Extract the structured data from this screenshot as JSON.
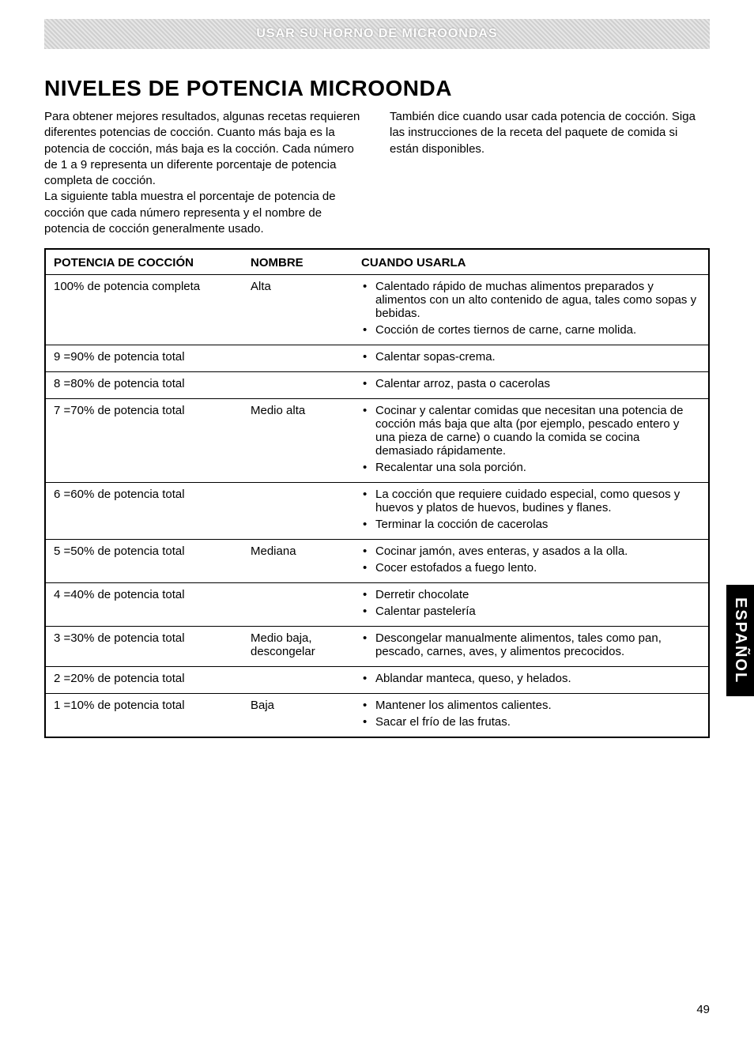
{
  "banner_text": "USAR SU HORNO DE MICROONDAS",
  "title": "NIVELES DE POTENCIA MICROONDA",
  "intro_left_1": "Para obtener mejores resultados, algunas recetas requieren diferentes potencias de cocción. Cuanto más baja es la potencia de cocción, más baja es la cocción. Cada número de 1 a 9 representa un diferente porcentaje de potencia completa de cocción.",
  "intro_left_2": "La siguiente tabla muestra el porcentaje de potencia de cocción que cada número representa y el nombre de potencia de cocción generalmente usado.",
  "intro_right": "También dice cuando usar cada potencia de cocción. Siga las instrucciones de la receta del paquete de comida si están disponibles.",
  "headers": {
    "col1": "POTENCIA DE COCCIÓN",
    "col2": "NOMBRE",
    "col3": "CUANDO USARLA"
  },
  "rows": [
    {
      "power": "100% de potencia completa",
      "name": "Alta",
      "uses": [
        "Calentado rápido de muchas alimentos preparados y alimentos con un alto contenido de agua, tales como sopas y bebidas.",
        "Cocción de cortes tiernos de carne, carne molida."
      ]
    },
    {
      "power": "9 =90% de potencia total",
      "name": "",
      "uses": [
        "Calentar sopas-crema."
      ]
    },
    {
      "power": "8 =80% de potencia total",
      "name": "",
      "uses": [
        "Calentar arroz, pasta o cacerolas"
      ]
    },
    {
      "power": "7 =70% de potencia total",
      "name": "Medio alta",
      "uses": [
        "Cocinar y calentar comidas que necesitan una potencia de cocción más baja que alta (por ejemplo, pescado entero y una pieza de carne) o cuando la comida se cocina demasiado rápidamente.",
        "Recalentar una sola porción."
      ]
    },
    {
      "power": "6 =60% de potencia total",
      "name": "",
      "uses": [
        "La cocción que requiere cuidado especial, como quesos y huevos y platos de huevos, budines y flanes.",
        "Terminar la cocción de cacerolas"
      ]
    },
    {
      "power": "5 =50% de potencia total",
      "name": "Mediana",
      "uses": [
        "Cocinar jamón, aves enteras, y asados a la olla.",
        "Cocer estofados a fuego lento."
      ]
    },
    {
      "power": "4 =40% de potencia total",
      "name": "",
      "uses": [
        "Derretir chocolate",
        "Calentar pastelería"
      ]
    },
    {
      "power": "3 =30% de potencia total",
      "name": "Medio baja, descongelar",
      "uses": [
        "Descongelar manualmente alimentos, tales como pan, pescado, carnes, aves, y alimentos precocidos."
      ]
    },
    {
      "power": "2 =20% de potencia total",
      "name": "",
      "uses": [
        "Ablandar manteca, queso, y helados."
      ]
    },
    {
      "power": "1 =10% de potencia total",
      "name": "Baja",
      "uses": [
        "Mantener los alimentos calientes.",
        "Sacar el frío de las frutas."
      ]
    }
  ],
  "side_tab": "ESPAÑOL",
  "page_number": "49"
}
